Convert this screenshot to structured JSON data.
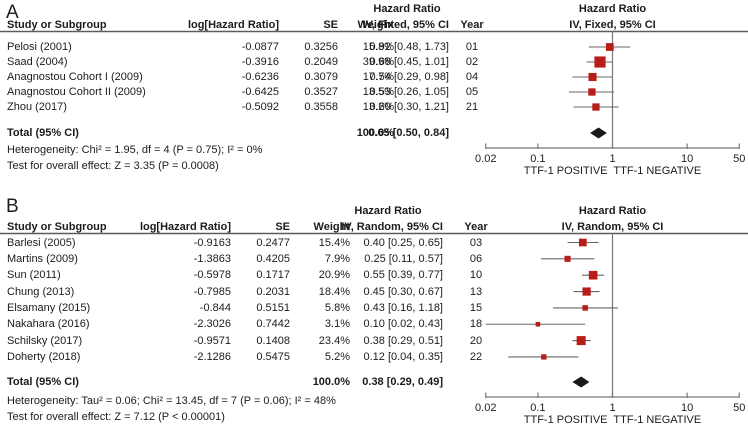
{
  "figure": {
    "colors": {
      "marker": "#b81d1a",
      "diamond": "#1a1a1a",
      "ci_line": "#666666",
      "axis_line": "#787878",
      "rule": "#5c5c5c",
      "text": "#1c1c1c"
    }
  },
  "chart_data": [
    {
      "type": "scatter",
      "subtype": "forest-plot",
      "panel_label": "A",
      "title": "Hazard Ratio",
      "effect_header": "IV, Fixed, 95% CI",
      "columns": {
        "study": "Study or Subgroup",
        "loghr": "log[Hazard Ratio]",
        "se": "SE",
        "weight": "Weight",
        "effect": "IV, Fixed, 95% CI",
        "year": "Year"
      },
      "studies": [
        {
          "study": "Pelosi (2001)",
          "loghr": "-0.0877",
          "se": "0.3256",
          "weight": "15.8%",
          "weight_pct": 15.8,
          "hr": 0.92,
          "ci_low": 0.48,
          "ci_high": 1.73,
          "effect_text": "0.92 [0.48, 1.73]",
          "year": "01"
        },
        {
          "study": "Saad (2004)",
          "loghr": "-0.3916",
          "se": "0.2049",
          "weight": "39.9%",
          "weight_pct": 39.9,
          "hr": 0.68,
          "ci_low": 0.45,
          "ci_high": 1.01,
          "effect_text": "0.68 [0.45, 1.01]",
          "year": "02"
        },
        {
          "study": "Anagnostou Cohort I (2009)",
          "loghr": "-0.6236",
          "se": "0.3079",
          "weight": "17.7%",
          "weight_pct": 17.7,
          "hr": 0.54,
          "ci_low": 0.29,
          "ci_high": 0.98,
          "effect_text": "0.54 [0.29, 0.98]",
          "year": "04"
        },
        {
          "study": "Anagnostou Cohort II (2009)",
          "loghr": "-0.6425",
          "se": "0.3527",
          "weight": "13.5%",
          "weight_pct": 13.5,
          "hr": 0.53,
          "ci_low": 0.26,
          "ci_high": 1.05,
          "effect_text": "0.53 [0.26, 1.05]",
          "year": "05"
        },
        {
          "study": "Zhou (2017)",
          "loghr": "-0.5092",
          "se": "0.3558",
          "weight": "13.2%",
          "weight_pct": 13.2,
          "hr": 0.6,
          "ci_low": 0.3,
          "ci_high": 1.21,
          "effect_text": "0.60 [0.30, 1.21]",
          "year": "21"
        }
      ],
      "total": {
        "label": "Total (95% CI)",
        "weight": "100.0%",
        "hr": 0.65,
        "ci_low": 0.5,
        "ci_high": 0.84,
        "effect_text": "0.65 [0.50, 0.84]"
      },
      "heterogeneity": "Heterogeneity: Chi² = 1.95, df = 4 (P = 0.75); I² = 0%",
      "overall_effect": "Test for overall effect: Z = 3.35 (P = 0.0008)",
      "axis": {
        "scale": "log",
        "xlim": [
          0.02,
          50
        ],
        "ticks": [
          0.02,
          0.1,
          1,
          10,
          50
        ],
        "tick_labels": [
          "0.02",
          "0.1",
          "1",
          "10",
          "50"
        ],
        "footer_left": "TTF-1 POSITIVE",
        "footer_right": "TTF-1 NEGATIVE"
      }
    },
    {
      "type": "scatter",
      "subtype": "forest-plot",
      "panel_label": "B",
      "title": "Hazard Ratio",
      "effect_header": "IV, Random, 95% CI",
      "columns": {
        "study": "Study or Subgroup",
        "loghr": "log[Hazard Ratio]",
        "se": "SE",
        "weight": "Weight",
        "effect": "IV, Random, 95% CI",
        "year": "Year"
      },
      "studies": [
        {
          "study": "Barlesi (2005)",
          "loghr": "-0.9163",
          "se": "0.2477",
          "weight": "15.4%",
          "weight_pct": 15.4,
          "hr": 0.4,
          "ci_low": 0.25,
          "ci_high": 0.65,
          "effect_text": "0.40 [0.25, 0.65]",
          "year": "03"
        },
        {
          "study": "Martins (2009)",
          "loghr": "-1.3863",
          "se": "0.4205",
          "weight": "7.9%",
          "weight_pct": 7.9,
          "hr": 0.25,
          "ci_low": 0.11,
          "ci_high": 0.57,
          "effect_text": "0.25 [0.11, 0.57]",
          "year": "06"
        },
        {
          "study": "Sun (2011)",
          "loghr": "-0.5978",
          "se": "0.1717",
          "weight": "20.9%",
          "weight_pct": 20.9,
          "hr": 0.55,
          "ci_low": 0.39,
          "ci_high": 0.77,
          "effect_text": "0.55 [0.39, 0.77]",
          "year": "10"
        },
        {
          "study": "Chung (2013)",
          "loghr": "-0.7985",
          "se": "0.2031",
          "weight": "18.4%",
          "weight_pct": 18.4,
          "hr": 0.45,
          "ci_low": 0.3,
          "ci_high": 0.67,
          "effect_text": "0.45 [0.30, 0.67]",
          "year": "13"
        },
        {
          "study": "Elsamany (2015)",
          "loghr": "-0.844",
          "se": "0.5151",
          "weight": "5.8%",
          "weight_pct": 5.8,
          "hr": 0.43,
          "ci_low": 0.16,
          "ci_high": 1.18,
          "effect_text": "0.43 [0.16, 1.18]",
          "year": "15"
        },
        {
          "study": "Nakahara (2016)",
          "loghr": "-2.3026",
          "se": "0.7442",
          "weight": "3.1%",
          "weight_pct": 3.1,
          "hr": 0.1,
          "ci_low": 0.02,
          "ci_high": 0.43,
          "effect_text": "0.10 [0.02, 0.43]",
          "year": "18"
        },
        {
          "study": "Schilsky (2017)",
          "loghr": "-0.9571",
          "se": "0.1408",
          "weight": "23.4%",
          "weight_pct": 23.4,
          "hr": 0.38,
          "ci_low": 0.29,
          "ci_high": 0.51,
          "effect_text": "0.38 [0.29, 0.51]",
          "year": "20"
        },
        {
          "study": "Doherty (2018)",
          "loghr": "-2.1286",
          "se": "0.5475",
          "weight": "5.2%",
          "weight_pct": 5.2,
          "hr": 0.12,
          "ci_low": 0.04,
          "ci_high": 0.35,
          "effect_text": "0.12 [0.04, 0.35]",
          "year": "22"
        }
      ],
      "total": {
        "label": "Total (95% CI)",
        "weight": "100.0%",
        "hr": 0.38,
        "ci_low": 0.29,
        "ci_high": 0.49,
        "effect_text": "0.38 [0.29, 0.49]"
      },
      "heterogeneity": "Heterogeneity: Tau² = 0.06; Chi² = 13.45, df = 7 (P = 0.06); I² = 48%",
      "overall_effect": "Test for overall effect: Z = 7.12 (P < 0.00001)",
      "axis": {
        "scale": "log",
        "xlim": [
          0.02,
          50
        ],
        "ticks": [
          0.02,
          0.1,
          1,
          10,
          50
        ],
        "tick_labels": [
          "0.02",
          "0.1",
          "1",
          "10",
          "50"
        ],
        "footer_left": "TTF-1 POSITIVE",
        "footer_right": "TTF-1 NEGATIVE"
      }
    }
  ]
}
